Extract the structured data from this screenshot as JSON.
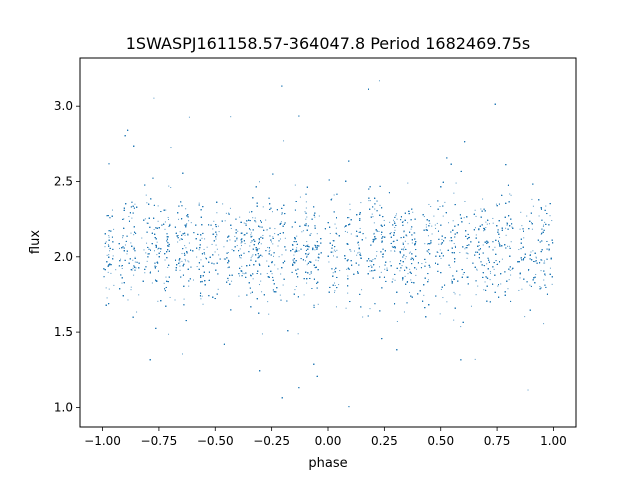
{
  "chart_data": {
    "type": "scatter",
    "title": "1SWASPJ161158.57-364047.8 Period 1682469.75s",
    "xlabel": "phase",
    "ylabel": "flux",
    "xlim": [
      -1.1,
      1.1
    ],
    "ylim": [
      0.87,
      3.32
    ],
    "xticks": [
      -1.0,
      -0.75,
      -0.5,
      -0.25,
      0.0,
      0.25,
      0.5,
      0.75,
      1.0
    ],
    "xtick_labels": [
      "−1.00",
      "−0.75",
      "−0.50",
      "−0.25",
      "0.00",
      "0.25",
      "0.50",
      "0.75",
      "1.00"
    ],
    "yticks": [
      1.0,
      1.5,
      2.0,
      2.5,
      3.0
    ],
    "ytick_labels": [
      "1.0",
      "1.5",
      "2.0",
      "2.5",
      "3.0"
    ],
    "grid": false,
    "legend": "none",
    "marker_color": "#1f77b4",
    "series": [
      {
        "phase_range": [
          -1.0,
          1.0
        ],
        "flux_center": 2.05,
        "flux_typical_range": [
          1.7,
          2.5
        ],
        "flux_extreme_range": [
          0.98,
          3.17
        ],
        "pattern": "dense vertical clumps of points (observing nights) spread across phase, mirrored in the -1..0 and 0..1 halves",
        "clump_phases": [
          -0.97,
          -0.91,
          -0.86,
          -0.8,
          -0.76,
          -0.71,
          -0.66,
          -0.63,
          -0.56,
          -0.5,
          -0.44,
          -0.39,
          -0.34,
          -0.3,
          -0.25,
          -0.2,
          -0.14,
          -0.09,
          -0.05,
          0.03,
          0.09,
          0.14,
          0.2,
          0.24,
          0.29,
          0.34,
          0.37,
          0.44,
          0.5,
          0.56,
          0.61,
          0.66,
          0.7,
          0.75,
          0.8,
          0.86,
          0.91,
          0.95,
          0.99
        ]
      }
    ]
  }
}
